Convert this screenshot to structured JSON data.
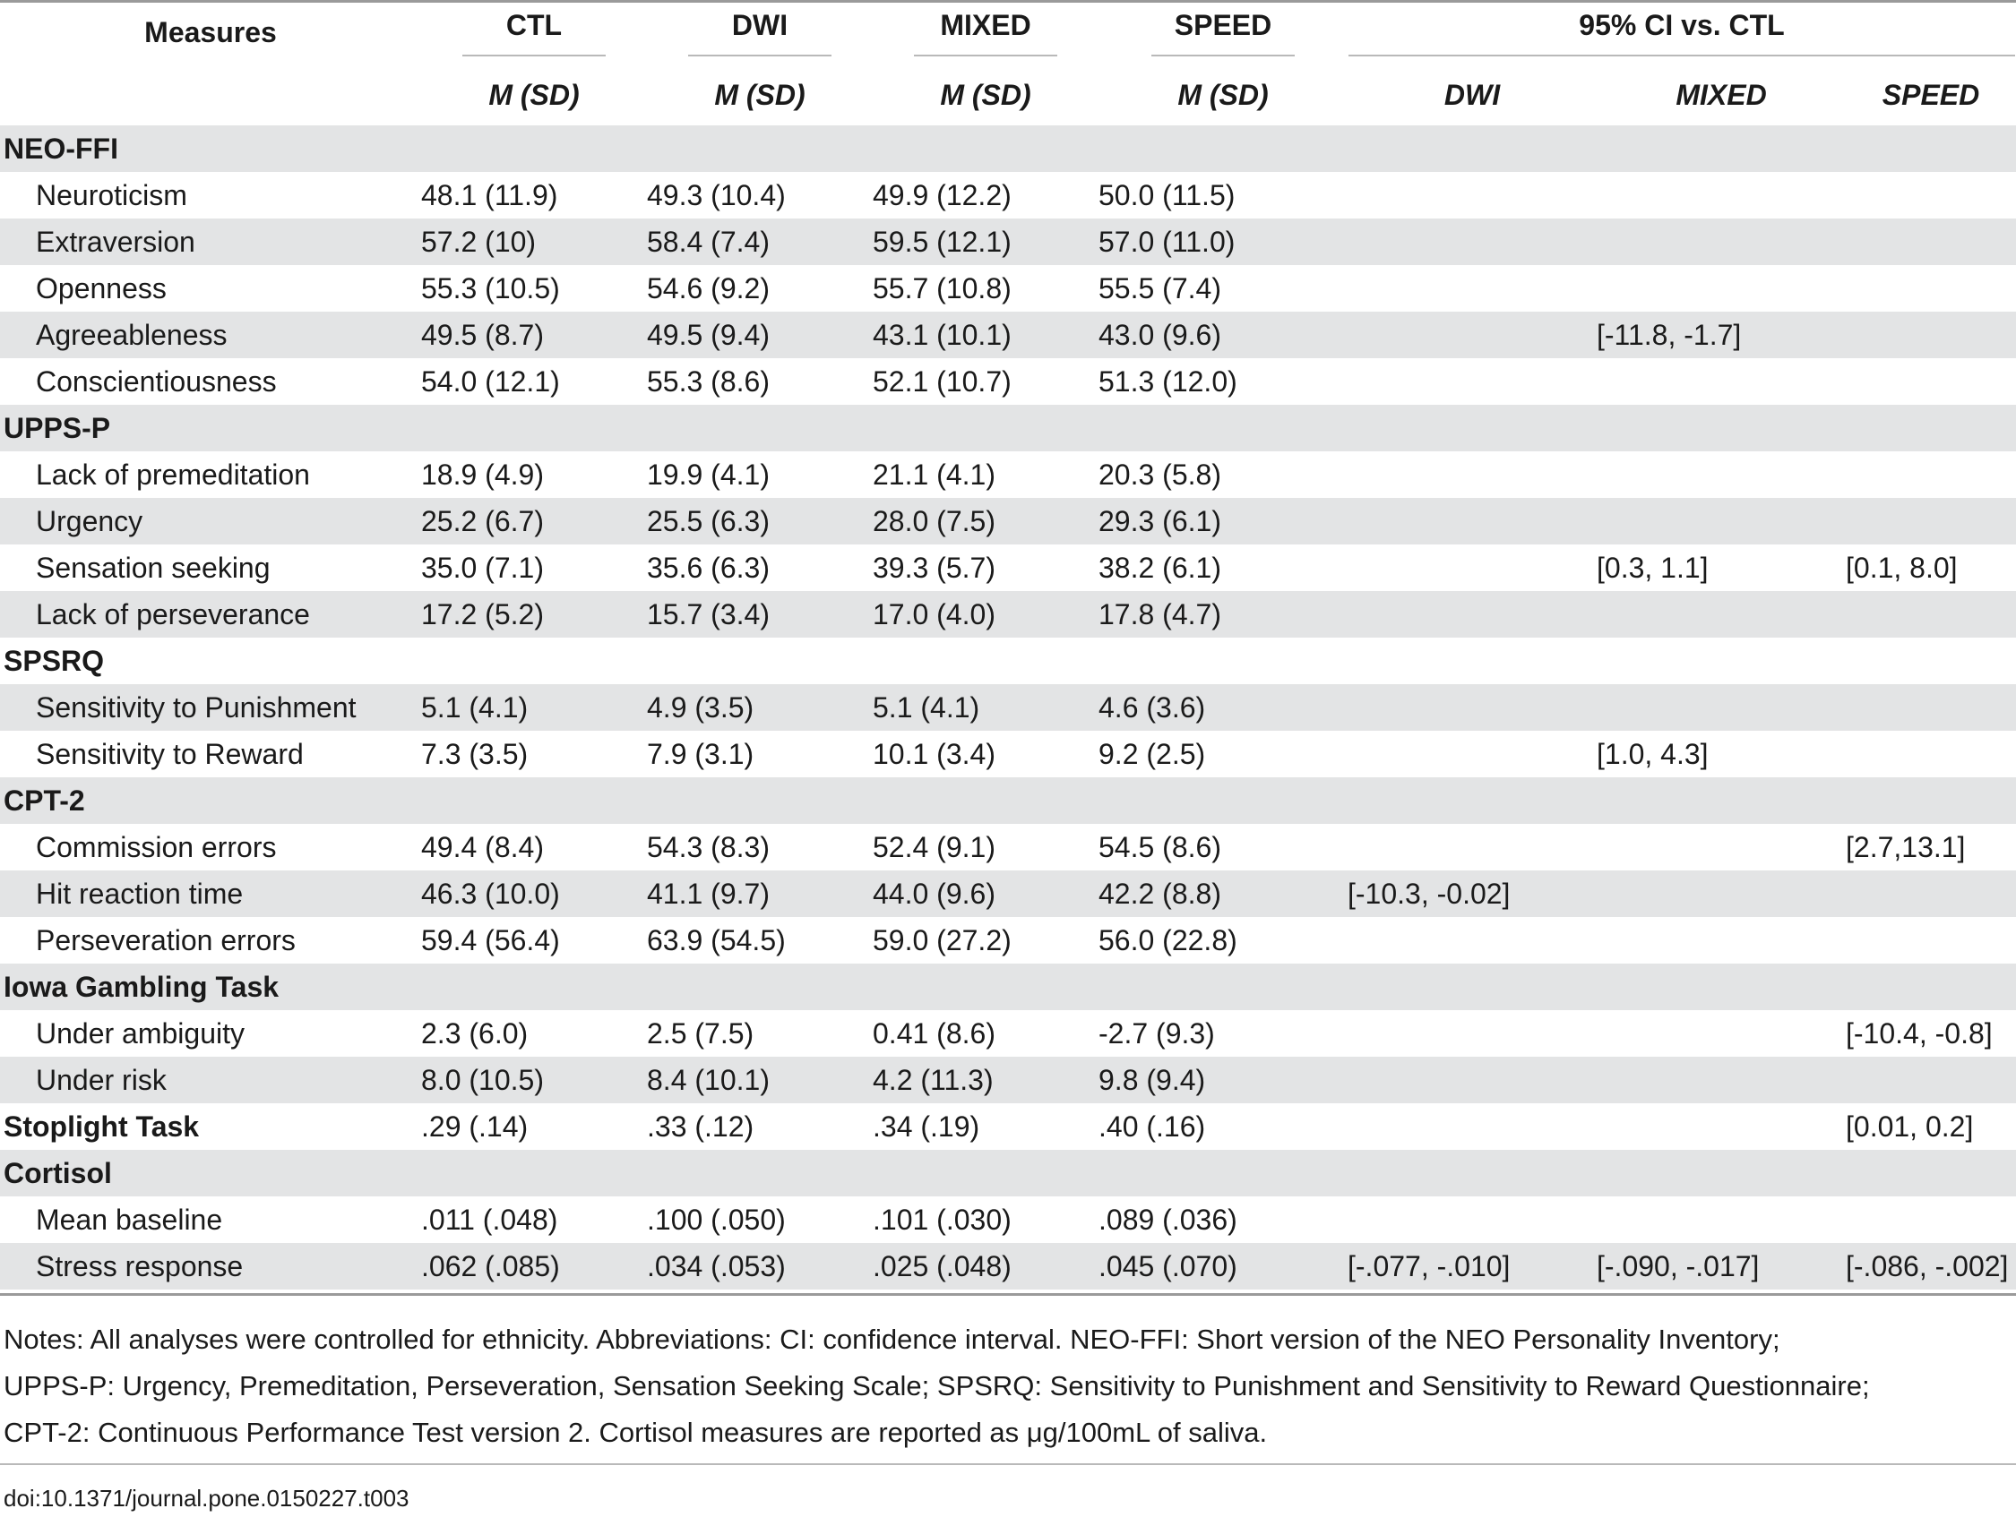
{
  "table": {
    "header": {
      "measures": "Measures",
      "groups": [
        "CTL",
        "DWI",
        "MIXED",
        "SPEED"
      ],
      "ci_title": "95% CI vs. CTL",
      "stat_label": "M (SD)",
      "ci_groups": [
        "DWI",
        "MIXED",
        "SPEED"
      ]
    },
    "rows": [
      {
        "label": "NEO-FFI",
        "group": true
      },
      {
        "label": "Neuroticism",
        "ctl": "48.1 (11.9)",
        "dwi": "49.3 (10.4)",
        "mixed": "49.9 (12.2)",
        "speed": "50.0 (11.5)",
        "ci_dwi": "",
        "ci_mixed": "",
        "ci_speed": ""
      },
      {
        "label": "Extraversion",
        "ctl": "57.2 (10)",
        "dwi": "58.4 (7.4)",
        "mixed": "59.5 (12.1)",
        "speed": "57.0 (11.0)",
        "ci_dwi": "",
        "ci_mixed": "",
        "ci_speed": ""
      },
      {
        "label": "Openness",
        "ctl": "55.3 (10.5)",
        "dwi": "54.6 (9.2)",
        "mixed": "55.7 (10.8)",
        "speed": "55.5 (7.4)",
        "ci_dwi": "",
        "ci_mixed": "",
        "ci_speed": ""
      },
      {
        "label": "Agreeableness",
        "ctl": "49.5 (8.7)",
        "dwi": "49.5 (9.4)",
        "mixed": "43.1 (10.1)",
        "speed": "43.0 (9.6)",
        "ci_dwi": "",
        "ci_mixed": "[-11.8, -1.7]",
        "ci_speed": ""
      },
      {
        "label": "Conscientiousness",
        "ctl": "54.0 (12.1)",
        "dwi": "55.3 (8.6)",
        "mixed": "52.1 (10.7)",
        "speed": "51.3 (12.0)",
        "ci_dwi": "",
        "ci_mixed": "",
        "ci_speed": ""
      },
      {
        "label": "UPPS-P",
        "group": true
      },
      {
        "label": "Lack of premeditation",
        "ctl": "18.9 (4.9)",
        "dwi": "19.9 (4.1)",
        "mixed": "21.1 (4.1)",
        "speed": "20.3 (5.8)",
        "ci_dwi": "",
        "ci_mixed": "",
        "ci_speed": ""
      },
      {
        "label": "Urgency",
        "ctl": "25.2 (6.7)",
        "dwi": "25.5 (6.3)",
        "mixed": "28.0 (7.5)",
        "speed": "29.3 (6.1)",
        "ci_dwi": "",
        "ci_mixed": "",
        "ci_speed": ""
      },
      {
        "label": "Sensation seeking",
        "ctl": "35.0 (7.1)",
        "dwi": "35.6 (6.3)",
        "mixed": "39.3 (5.7)",
        "speed": "38.2 (6.1)",
        "ci_dwi": "",
        "ci_mixed": "[0.3, 1.1]",
        "ci_speed": "[0.1, 8.0]"
      },
      {
        "label": "Lack of perseverance",
        "ctl": "17.2 (5.2)",
        "dwi": "15.7 (3.4)",
        "mixed": "17.0 (4.0)",
        "speed": "17.8 (4.7)",
        "ci_dwi": "",
        "ci_mixed": "",
        "ci_speed": ""
      },
      {
        "label": "SPSRQ",
        "group": true
      },
      {
        "label": "Sensitivity to Punishment",
        "ctl": "5.1 (4.1)",
        "dwi": "4.9 (3.5)",
        "mixed": "5.1 (4.1)",
        "speed": "4.6 (3.6)",
        "ci_dwi": "",
        "ci_mixed": "",
        "ci_speed": ""
      },
      {
        "label": "Sensitivity to Reward",
        "ctl": "7.3 (3.5)",
        "dwi": "7.9 (3.1)",
        "mixed": "10.1 (3.4)",
        "speed": "9.2 (2.5)",
        "ci_dwi": "",
        "ci_mixed": "[1.0, 4.3]",
        "ci_speed": ""
      },
      {
        "label": "CPT-2",
        "group": true
      },
      {
        "label": "Commission errors",
        "ctl": "49.4 (8.4)",
        "dwi": "54.3 (8.3)",
        "mixed": "52.4 (9.1)",
        "speed": "54.5 (8.6)",
        "ci_dwi": "",
        "ci_mixed": "",
        "ci_speed": "[2.7,13.1]"
      },
      {
        "label": "Hit reaction time",
        "ctl": "46.3 (10.0)",
        "dwi": "41.1 (9.7)",
        "mixed": "44.0 (9.6)",
        "speed": "42.2 (8.8)",
        "ci_dwi": "[-10.3, -0.02]",
        "ci_mixed": "",
        "ci_speed": ""
      },
      {
        "label": "Perseveration errors",
        "ctl": "59.4 (56.4)",
        "dwi": "63.9 (54.5)",
        "mixed": "59.0 (27.2)",
        "speed": "56.0 (22.8)",
        "ci_dwi": "",
        "ci_mixed": "",
        "ci_speed": ""
      },
      {
        "label": "Iowa Gambling Task",
        "group": true
      },
      {
        "label": "Under ambiguity",
        "ctl": "2.3 (6.0)",
        "dwi": "2.5 (7.5)",
        "mixed": "0.41 (8.6)",
        "speed": "-2.7 (9.3)",
        "ci_dwi": "",
        "ci_mixed": "",
        "ci_speed": "[-10.4, -0.8]"
      },
      {
        "label": "Under risk",
        "ctl": "8.0 (10.5)",
        "dwi": "8.4 (10.1)",
        "mixed": "4.2 (11.3)",
        "speed": "9.8 (9.4)",
        "ci_dwi": "",
        "ci_mixed": "",
        "ci_speed": ""
      },
      {
        "label": "Stoplight Task",
        "group": true,
        "ctl": ".29 (.14)",
        "dwi": ".33 (.12)",
        "mixed": ".34 (.19)",
        "speed": ".40 (.16)",
        "ci_dwi": "",
        "ci_mixed": "",
        "ci_speed": "[0.01, 0.2]"
      },
      {
        "label": "Cortisol",
        "group": true
      },
      {
        "label": "Mean baseline",
        "ctl": ".011 (.048)",
        "dwi": ".100 (.050)",
        "mixed": ".101 (.030)",
        "speed": ".089 (.036)",
        "ci_dwi": "",
        "ci_mixed": "",
        "ci_speed": ""
      },
      {
        "label": "Stress response",
        "ctl": ".062 (.085)",
        "dwi": ".034 (.053)",
        "mixed": ".025 (.048)",
        "speed": ".045 (.070)",
        "ci_dwi": "[-.077, -.010]",
        "ci_mixed": "[-.090, -.017]",
        "ci_speed": "[-.086, -.002]"
      }
    ]
  },
  "notes": {
    "lines": [
      "Notes: All analyses were controlled for ethnicity. Abbreviations: CI: confidence interval. NEO-FFI: Short version of the NEO Personality Inventory;",
      "UPPS-P: Urgency, Premeditation, Perseveration, Sensation Seeking Scale; SPSRQ: Sensitivity to Punishment and Sensitivity to Reward Questionnaire;",
      "CPT-2: Continuous Performance Test version 2. Cortisol measures are reported as μg/100mL of saliva."
    ]
  },
  "doi": "doi:10.1371/journal.pone.0150227.t003"
}
